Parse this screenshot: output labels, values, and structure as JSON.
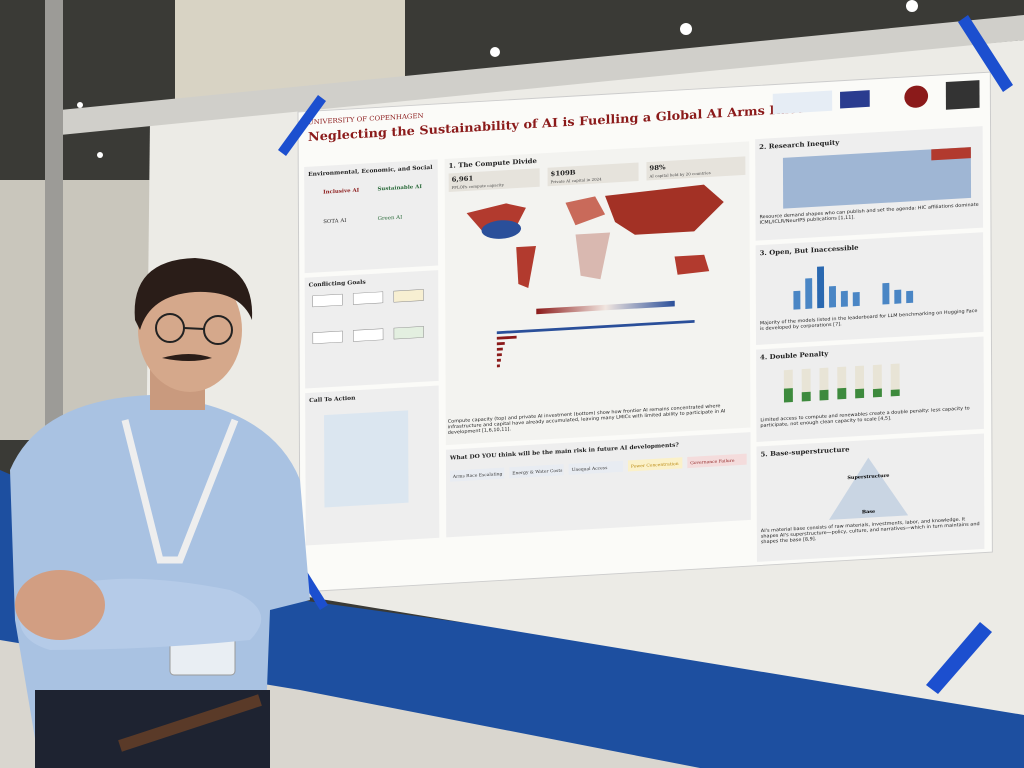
{
  "poster": {
    "university": "UNIVERSITY OF COPENHAGEN",
    "title": "Neglecting the Sustainability of AI is Fuelling a Global AI Arms Race",
    "left": {
      "section1": "Environmental, Economic, and Social",
      "inclusive": "Inclusive AI",
      "sustainable": "Sustainable AI",
      "sota": "SOTA AI",
      "green": "Green AI",
      "section2": "Conflicting Goals",
      "section3": "Call To Action"
    },
    "compute": {
      "heading": "1. The Compute Divide",
      "stats": [
        {
          "value": "6,961",
          "label": "PFLOPs compute capacity"
        },
        {
          "value": "$109B",
          "label": "Private AI capital in 2024"
        },
        {
          "value": "98%",
          "label": "AI capital held by 20 countries"
        }
      ],
      "caption": "Compute capacity (top) and private AI investment (bottom) show how frontier AI remains concentrated where infrastructure and capital have already accumulated, leaving many LMICs with limited ability to participate in AI development [1,6,10,11]."
    },
    "question": {
      "text": "What DO YOU think will be the main risk in future AI developments?",
      "options": [
        "Arms Race Escalating",
        "Energy & Water Costs",
        "Unequal Access",
        "Power Concentration",
        "Governance Failure"
      ]
    },
    "right": [
      {
        "heading": "2. Research Inequity",
        "caption": "Resource demand shapes who can publish and set the agenda: HIC affiliations dominate ICML/ICLR/NeurIPS publications [1,11]."
      },
      {
        "heading": "3. Open, But Inaccessible",
        "caption": "Majority of the models listed in the leaderboard for LLM benchmarking on Hugging Face is developed by corporations [7]."
      },
      {
        "heading": "4. Double Penalty",
        "caption": "Limited access to compute and renewables create a double penalty: less capacity to participate, not enough clean capacity to scale [4,5]."
      },
      {
        "heading": "5. Base-superstructure",
        "caption": "AI's material base consists of raw materials, investments, labor, and knowledge. It shapes AI's superstructure—policy, culture, and narratives—which in turn maintains and shapes the base [8,9].",
        "top": "Superstructure",
        "bottom": "Base"
      }
    ]
  }
}
